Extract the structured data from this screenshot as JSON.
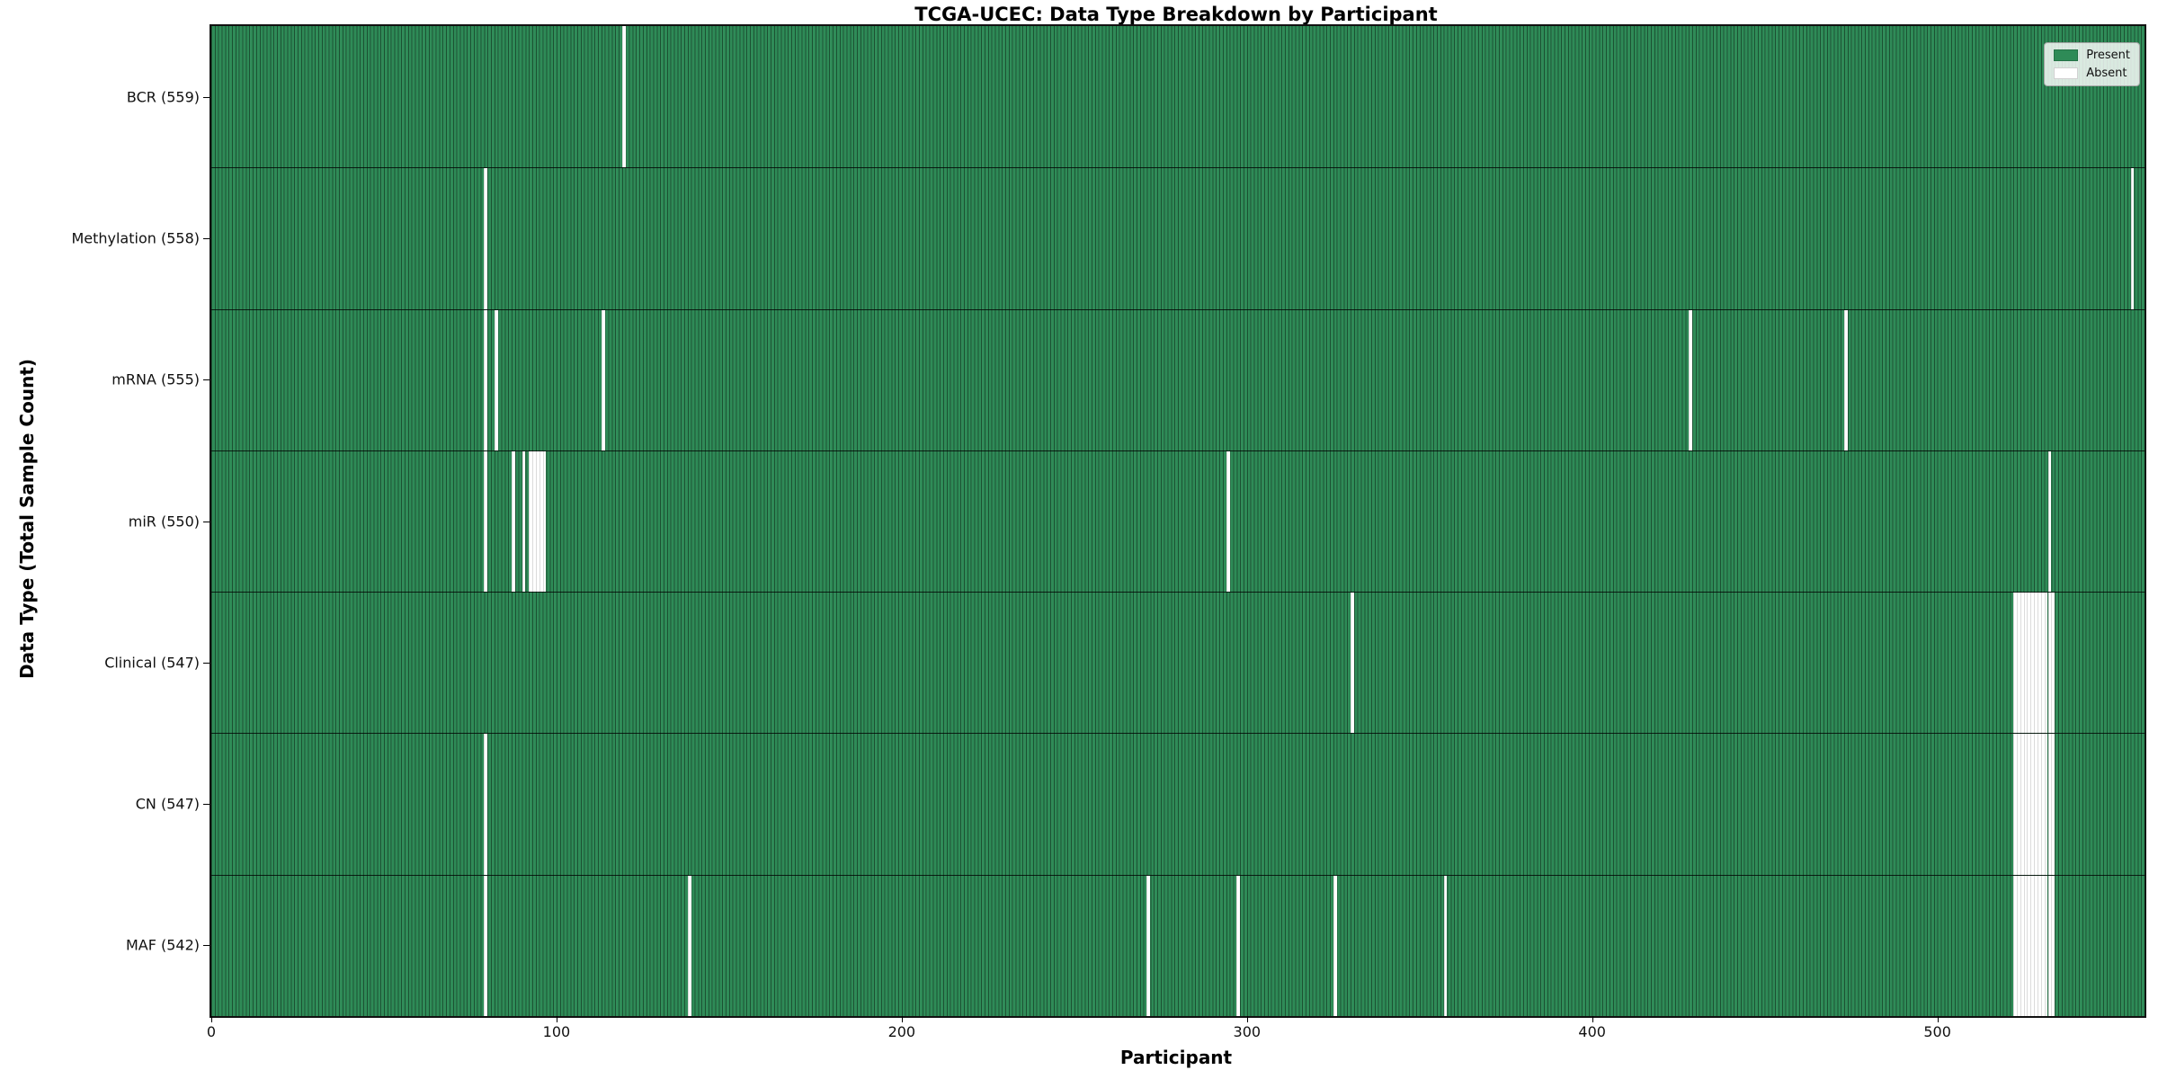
{
  "chart_data": {
    "type": "heatmap",
    "title": "TCGA-UCEC: Data Type Breakdown by Participant",
    "xlabel": "Participant",
    "ylabel": "Data Type (Total Sample Count)",
    "n_participants": 560,
    "x_ticks": [
      0,
      100,
      200,
      300,
      400,
      500
    ],
    "xlim": [
      0,
      560
    ],
    "grid": false,
    "legend_position": "upper right",
    "present_color": "#2e8b57",
    "absent_color": "#ffffff",
    "legend": [
      {
        "label": "Present",
        "color": "#2e8b57"
      },
      {
        "label": "Absent",
        "color": "#ffffff"
      }
    ],
    "rows": [
      {
        "label": "BCR (559)",
        "data_type": "BCR",
        "total_samples": 559,
        "absent_participants": [
          119
        ]
      },
      {
        "label": "Methylation (558)",
        "data_type": "Methylation",
        "total_samples": 558,
        "absent_participants": [
          79,
          556
        ]
      },
      {
        "label": "mRNA (555)",
        "data_type": "mRNA",
        "total_samples": 555,
        "absent_participants": [
          79,
          82,
          113,
          428,
          473
        ]
      },
      {
        "label": "miR (550)",
        "data_type": "miR",
        "total_samples": 550,
        "absent_participants": [
          79,
          87,
          90,
          92,
          93,
          94,
          95,
          96,
          294,
          532
        ]
      },
      {
        "label": "Clinical (547)",
        "data_type": "Clinical",
        "total_samples": 547,
        "absent_participants": [
          330,
          522,
          523,
          524,
          525,
          526,
          527,
          528,
          529,
          530,
          531,
          532,
          533
        ]
      },
      {
        "label": "CN (547)",
        "data_type": "CN",
        "total_samples": 547,
        "absent_participants": [
          79,
          522,
          523,
          524,
          525,
          526,
          527,
          528,
          529,
          530,
          531,
          532,
          533
        ]
      },
      {
        "label": "MAF (542)",
        "data_type": "MAF",
        "total_samples": 542,
        "absent_participants": [
          79,
          138,
          271,
          297,
          325,
          357,
          522,
          523,
          524,
          525,
          526,
          527,
          528,
          529,
          530,
          531,
          532,
          533
        ]
      }
    ]
  }
}
